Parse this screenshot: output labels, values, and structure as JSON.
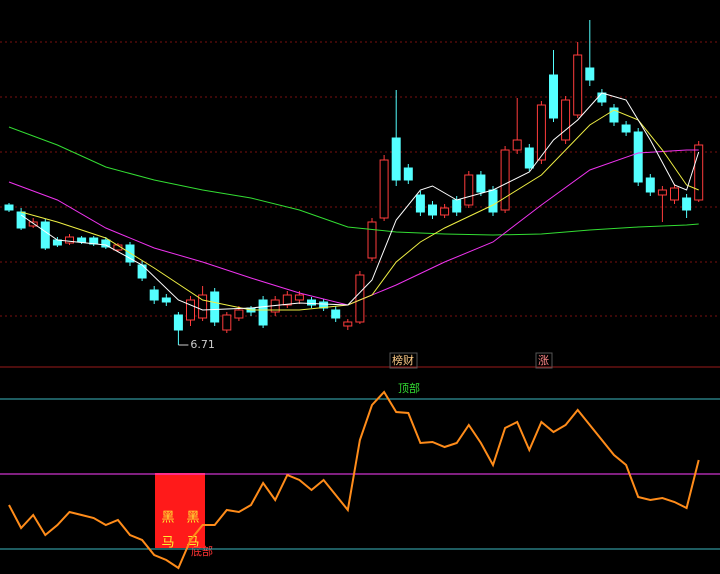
{
  "chart_data": [
    {
      "type": "candlestick",
      "up_color": "#ff3c3c",
      "down_color": "#54ffff",
      "ylim": [
        6.56,
        10.06
      ],
      "open": [
        8.11,
        8.04,
        7.9,
        7.94,
        7.76,
        7.73,
        7.78,
        7.78,
        7.76,
        7.66,
        7.71,
        7.51,
        7.26,
        7.18,
        7.01,
        6.96,
        6.98,
        7.24,
        6.86,
        6.98,
        7.08,
        7.16,
        7.04,
        7.11,
        7.16,
        7.16,
        7.14,
        7.06,
        6.9,
        6.94,
        7.58,
        7.98,
        8.78,
        8.48,
        8.21,
        8.11,
        8.01,
        8.16,
        8.11,
        8.41,
        8.26,
        8.06,
        8.66,
        8.68,
        8.56,
        9.41,
        8.76,
        9.01,
        9.48,
        9.23,
        9.08,
        8.91,
        8.84,
        8.38,
        8.21,
        8.16,
        8.18,
        8.16
      ],
      "high": [
        8.13,
        8.08,
        7.98,
        7.97,
        7.79,
        7.82,
        7.8,
        7.8,
        7.79,
        7.73,
        7.74,
        7.55,
        7.3,
        7.22,
        7.04,
        7.2,
        7.3,
        7.28,
        7.04,
        7.1,
        7.1,
        7.2,
        7.2,
        7.25,
        7.25,
        7.19,
        7.17,
        7.1,
        6.97,
        7.45,
        7.98,
        8.61,
        9.26,
        8.52,
        8.25,
        8.15,
        8.12,
        8.2,
        8.45,
        8.45,
        8.3,
        8.7,
        9.18,
        8.72,
        9.15,
        9.66,
        9.2,
        9.74,
        9.96,
        9.27,
        9.12,
        8.95,
        8.88,
        8.42,
        8.3,
        8.32,
        8.22,
        8.75
      ],
      "low": [
        8.04,
        7.86,
        7.88,
        7.66,
        7.69,
        7.71,
        7.72,
        7.7,
        7.67,
        7.64,
        7.5,
        7.35,
        7.12,
        7.1,
        6.71,
        6.9,
        6.95,
        6.9,
        6.83,
        6.95,
        7.0,
        6.88,
        7.0,
        7.08,
        7.12,
        7.08,
        7.05,
        6.94,
        6.86,
        6.92,
        7.55,
        7.95,
        8.3,
        8.32,
        8.0,
        7.97,
        7.98,
        8.0,
        8.08,
        8.2,
        8.0,
        8.03,
        8.62,
        8.45,
        8.52,
        8.94,
        8.72,
        8.98,
        9.3,
        9.1,
        8.9,
        8.8,
        8.3,
        8.2,
        7.94,
        8.12,
        7.98,
        8.14
      ],
      "close": [
        8.06,
        7.88,
        7.94,
        7.68,
        7.71,
        7.79,
        7.74,
        7.72,
        7.69,
        7.71,
        7.54,
        7.38,
        7.16,
        7.14,
        6.86,
        7.16,
        7.21,
        6.94,
        7.01,
        7.06,
        7.04,
        6.91,
        7.16,
        7.21,
        7.21,
        7.11,
        7.08,
        6.98,
        6.94,
        7.41,
        7.94,
        8.56,
        8.36,
        8.36,
        8.04,
        8.01,
        8.08,
        8.04,
        8.41,
        8.24,
        8.04,
        8.66,
        8.76,
        8.48,
        9.11,
        8.98,
        9.16,
        9.61,
        9.36,
        9.14,
        8.94,
        8.84,
        8.34,
        8.24,
        8.26,
        8.28,
        8.06,
        8.71
      ],
      "series": [
        {
          "color": "#33dd33",
          "x": [
            0,
            4,
            8,
            12,
            16,
            20,
            24,
            28,
            32,
            36,
            40,
            44,
            48,
            52,
            56,
            57
          ],
          "values": [
            8.89,
            8.71,
            8.49,
            8.36,
            8.26,
            8.18,
            8.06,
            7.89,
            7.84,
            7.82,
            7.81,
            7.82,
            7.86,
            7.89,
            7.91,
            7.92
          ]
        },
        {
          "color": "#ee33ee",
          "x": [
            0,
            4,
            8,
            12,
            16,
            20,
            24,
            28,
            32,
            36,
            40,
            44,
            48,
            52,
            56,
            57
          ],
          "values": [
            8.34,
            8.16,
            7.88,
            7.68,
            7.54,
            7.38,
            7.23,
            7.11,
            7.31,
            7.54,
            7.74,
            8.11,
            8.46,
            8.63,
            8.66,
            8.66
          ]
        },
        {
          "color": "#eeee44",
          "x": [
            1,
            4,
            8,
            12,
            16,
            20,
            24,
            28,
            30,
            32,
            34,
            36,
            40,
            44,
            48,
            50,
            52,
            54,
            56,
            57
          ],
          "values": [
            8.04,
            7.94,
            7.78,
            7.48,
            7.16,
            7.06,
            7.06,
            7.11,
            7.21,
            7.54,
            7.74,
            7.88,
            8.11,
            8.41,
            8.91,
            9.06,
            8.96,
            8.66,
            8.31,
            8.26
          ]
        },
        {
          "color": "#ffffff",
          "x": [
            1,
            4,
            8,
            11,
            14,
            16,
            20,
            24,
            28,
            30,
            32,
            34,
            35,
            37,
            40,
            43,
            45,
            47,
            49,
            51,
            53,
            55,
            56,
            57
          ],
          "values": [
            8.01,
            7.76,
            7.71,
            7.51,
            7.16,
            7.06,
            7.08,
            7.13,
            7.11,
            7.36,
            7.96,
            8.26,
            8.3,
            8.16,
            8.26,
            8.44,
            8.76,
            8.96,
            9.23,
            9.16,
            8.76,
            8.31,
            8.26,
            8.64
          ]
        }
      ],
      "annotations": [
        "榜财",
        "涨"
      ]
    },
    {
      "type": "line",
      "color": "#ff8c1a",
      "ylim": [
        10,
        93
      ],
      "values": [
        37.6,
        28.4,
        33.6,
        25.6,
        29.6,
        34.8,
        33.6,
        32.4,
        29.6,
        31.6,
        25.6,
        23.6,
        17.6,
        15.6,
        12.4,
        23.6,
        29.6,
        29.6,
        35.6,
        34.8,
        37.6,
        46.4,
        39.6,
        49.6,
        47.6,
        43.6,
        47.6,
        41.6,
        35.6,
        63.6,
        77.6,
        82.8,
        74.8,
        74.4,
        62.4,
        62.8,
        60.8,
        62.4,
        69.6,
        62.4,
        53.6,
        68.4,
        70.8,
        59.6,
        70.8,
        66.8,
        69.6,
        75.6,
        69.6,
        63.6,
        57.6,
        53.6,
        40.8,
        39.6,
        40.4,
        38.8,
        36.4,
        55.6
      ],
      "levels": [
        {
          "value": 80,
          "color": "#3cb8c0"
        },
        {
          "value": 50,
          "color": "#ff40ff"
        },
        {
          "value": 20,
          "color": "#3cb8c0"
        }
      ],
      "annotations": [
        "顶部",
        "底部"
      ],
      "signal_text": "黑马"
    }
  ]
}
